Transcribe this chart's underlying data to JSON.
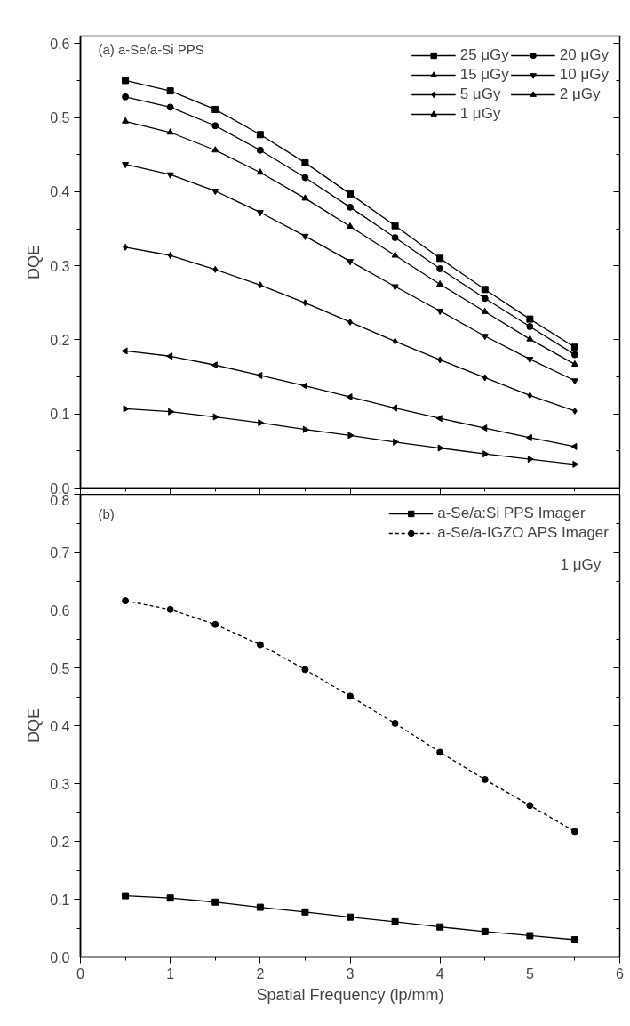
{
  "chart_data": [
    {
      "type": "line",
      "annotations": [
        "(a) a-Se/a-Si PPS"
      ],
      "ylabel": "DQE",
      "xlim": [
        0,
        6
      ],
      "xticks": [
        0,
        1,
        2,
        3,
        4,
        5,
        6
      ],
      "ylim": [
        0,
        0.61
      ],
      "yticks": [
        {
          "value": 0,
          "label": "0.0"
        },
        0.1,
        0.2,
        0.3,
        0.4,
        0.5,
        0.6
      ],
      "tick_labels": "y",
      "grid": false,
      "legend": "top right",
      "x": [
        0.5,
        1,
        1.5,
        2,
        2.5,
        3,
        3.5,
        4,
        4.5,
        5,
        5.5
      ],
      "series": [
        {
          "name": "25 μGy",
          "color": "#000000",
          "marker": "square",
          "values": [
            0.55,
            0.536,
            0.511,
            0.477,
            0.439,
            0.397,
            0.354,
            0.31,
            0.268,
            0.228,
            0.19
          ]
        },
        {
          "name": "20 μGy",
          "color": "#000000",
          "marker": "circle",
          "values": [
            0.528,
            0.514,
            0.489,
            0.456,
            0.419,
            0.379,
            0.338,
            0.296,
            0.256,
            0.218,
            0.18
          ]
        },
        {
          "name": "15 μGy",
          "color": "#000000",
          "marker": "triangle",
          "values": [
            0.495,
            0.48,
            0.456,
            0.426,
            0.391,
            0.353,
            0.314,
            0.275,
            0.238,
            0.201,
            0.167
          ]
        },
        {
          "name": "10 μGy",
          "color": "#000000",
          "marker": "triangle_down",
          "values": [
            0.437,
            0.423,
            0.401,
            0.372,
            0.34,
            0.306,
            0.272,
            0.239,
            0.205,
            0.174,
            0.145
          ]
        },
        {
          "name": "5 μGy",
          "color": "#000000",
          "marker": "diamond",
          "values": [
            0.325,
            0.314,
            0.295,
            0.274,
            0.25,
            0.224,
            0.198,
            0.173,
            0.149,
            0.125,
            0.104
          ]
        },
        {
          "name": "2 μGy",
          "color": "#000000",
          "marker": "triangle_left",
          "values": [
            0.185,
            0.178,
            0.166,
            0.152,
            0.138,
            0.123,
            0.108,
            0.094,
            0.081,
            0.068,
            0.056
          ]
        },
        {
          "name": "1 μGy",
          "color": "#000000",
          "marker": "triangle_right",
          "values": [
            0.107,
            0.103,
            0.096,
            0.088,
            0.079,
            0.071,
            0.062,
            0.054,
            0.046,
            0.039,
            0.032
          ]
        }
      ]
    },
    {
      "type": "line",
      "annotations": [
        "(b)",
        "1 μGy"
      ],
      "xlabel": "Spatial Frequency (lp/mm)",
      "ylabel": "DQE",
      "xlim": [
        0,
        6
      ],
      "xticks": [
        0,
        1,
        2,
        3,
        4,
        5,
        6
      ],
      "ylim": [
        0,
        0.8
      ],
      "yticks": [
        {
          "value": 0,
          "label": "0.0"
        },
        0.1,
        0.2,
        0.3,
        0.4,
        0.5,
        0.6,
        0.7,
        0.8
      ],
      "grid": false,
      "legend": "top right",
      "x": [
        0.5,
        1,
        1.5,
        2,
        2.5,
        3,
        3.5,
        4,
        4.5,
        5,
        5.5
      ],
      "series": [
        {
          "name": "a-Se/a:Si PPS Imager",
          "color": "#000000",
          "marker": "square",
          "line_style": "solid",
          "values": [
            0.106,
            0.102,
            0.095,
            0.086,
            0.078,
            0.069,
            0.061,
            0.052,
            0.044,
            0.037,
            0.03
          ]
        },
        {
          "name": "a-Se/a-IGZO APS Imager",
          "color": "#000000",
          "marker": "circle",
          "line_style": "dashed",
          "values": [
            0.616,
            0.601,
            0.575,
            0.54,
            0.497,
            0.451,
            0.404,
            0.354,
            0.307,
            0.262,
            0.217
          ]
        }
      ]
    }
  ]
}
